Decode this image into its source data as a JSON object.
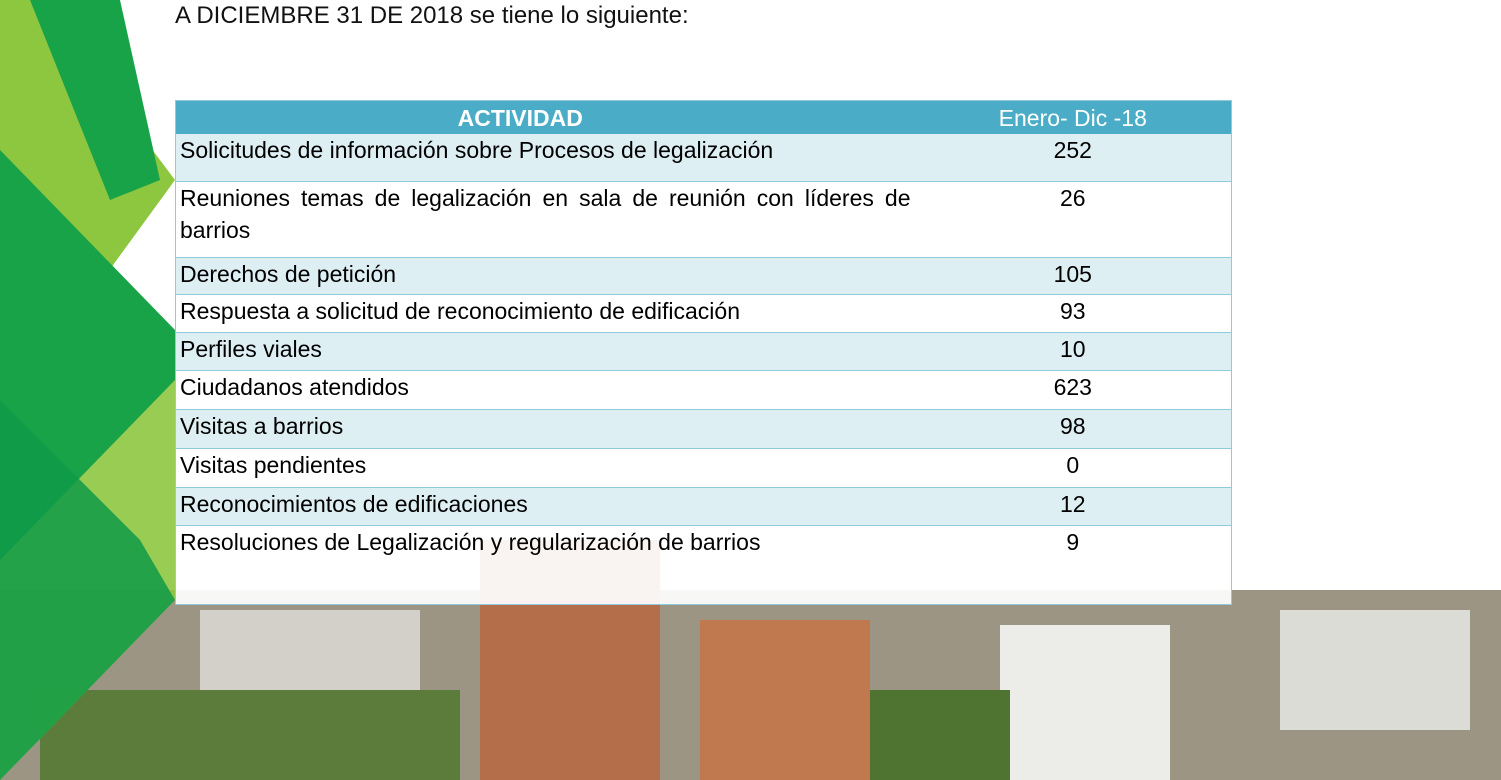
{
  "heading": "A DICIEMBRE 31 DE 2018 se tiene lo siguiente:",
  "table": {
    "header": [
      "ACTIVIDAD",
      "Enero- Dic -18"
    ],
    "rows": [
      [
        "Solicitudes de información sobre Procesos de legalización",
        252
      ],
      [
        "Reuniones temas de legalización en sala de reunión con líderes de barrios",
        26
      ],
      [
        "Derechos de petición",
        105
      ],
      [
        "Respuesta a solicitud de reconocimiento de edificación",
        93
      ],
      [
        "Perfiles viales",
        10
      ],
      [
        "Ciudadanos atendidos",
        623
      ],
      [
        "Visitas a barrios",
        98
      ],
      [
        "Visitas pendientes",
        0
      ],
      [
        "Reconocimientos de edificaciones",
        12
      ],
      [
        "Resoluciones de Legalización y regularización de barrios",
        9
      ]
    ]
  }
}
